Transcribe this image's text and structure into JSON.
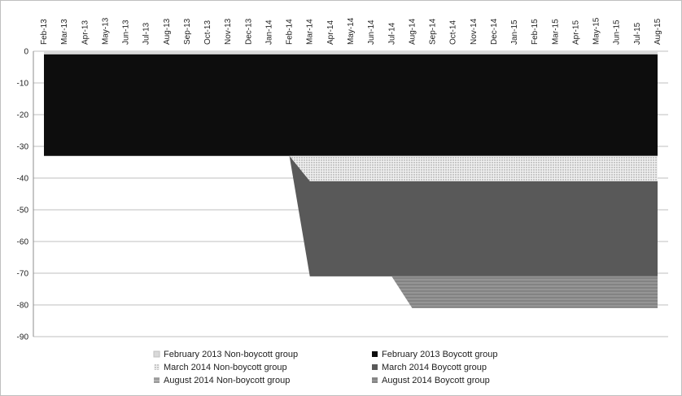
{
  "chart_data": {
    "type": "area",
    "title": "",
    "xlabel": "",
    "ylabel": "",
    "ylim": [
      -90,
      0
    ],
    "y_ticks": [
      0,
      -10,
      -20,
      -30,
      -40,
      -50,
      -60,
      -70,
      -80,
      -90
    ],
    "x_axis_position": "top",
    "grid": "horizontal",
    "legend_position": "bottom",
    "categories": [
      "Feb-13",
      "Mar-13",
      "Apr-13",
      "May-13",
      "Jun-13",
      "Jul-13",
      "Aug-13",
      "Sep-13",
      "Oct-13",
      "Nov-13",
      "Dec-13",
      "Jan-14",
      "Feb-14",
      "Mar-14",
      "Apr-14",
      "May-14",
      "Jun-14",
      "Jul-14",
      "Aug-14",
      "Sep-14",
      "Oct-14",
      "Nov-14",
      "Dec-14",
      "Jan-15",
      "Feb-15",
      "Mar-15",
      "Apr-15",
      "May-15",
      "Jun-15",
      "Jul-15",
      "Aug-15"
    ],
    "series": [
      {
        "name": "February 2013 Non-boycott group",
        "color": "#d9d9d9",
        "pattern": "solid",
        "values": [
          -1,
          -1,
          -1,
          -1,
          -1,
          -1,
          -1,
          -1,
          -1,
          -1,
          -1,
          -1,
          -1,
          -1,
          -1,
          -1,
          -1,
          -1,
          -1,
          -1,
          -1,
          -1,
          -1,
          -1,
          -1,
          -1,
          -1,
          -1,
          -1,
          -1,
          -1
        ]
      },
      {
        "name": "February 2013 Boycott group",
        "color": "#0d0d0d",
        "pattern": "solid",
        "values": [
          -32,
          -32,
          -32,
          -32,
          -32,
          -32,
          -32,
          -32,
          -32,
          -32,
          -32,
          -32,
          -32,
          -32,
          -32,
          -32,
          -32,
          -32,
          -32,
          -32,
          -32,
          -32,
          -32,
          -32,
          -32,
          -32,
          -32,
          -32,
          -32,
          -32,
          -32
        ]
      },
      {
        "name": "March 2014 Non-boycott group",
        "color": "#e6e6e6",
        "pattern": "dotted",
        "values": [
          0,
          0,
          0,
          0,
          0,
          0,
          0,
          0,
          0,
          0,
          0,
          0,
          0,
          -8,
          -8,
          -8,
          -8,
          -8,
          -8,
          -8,
          -8,
          -8,
          -8,
          -8,
          -8,
          -8,
          -8,
          -8,
          -8,
          -8,
          -8
        ]
      },
      {
        "name": "March 2014 Boycott group",
        "color": "#595959",
        "pattern": "solid",
        "values": [
          0,
          0,
          0,
          0,
          0,
          0,
          0,
          0,
          0,
          0,
          0,
          0,
          0,
          -30,
          -30,
          -30,
          -30,
          -30,
          -30,
          -30,
          -30,
          -30,
          -30,
          -30,
          -30,
          -30,
          -30,
          -30,
          -30,
          -30,
          -30
        ]
      },
      {
        "name": "August 2014 Non-boycott group",
        "color": "#bfbfbf",
        "pattern": "hatched",
        "values": [
          0,
          0,
          0,
          0,
          0,
          0,
          0,
          0,
          0,
          0,
          0,
          0,
          0,
          0,
          0,
          0,
          0,
          0,
          0,
          0,
          0,
          0,
          0,
          0,
          0,
          0,
          0,
          0,
          0,
          0,
          0
        ]
      },
      {
        "name": "August 2014 Boycott group",
        "color": "#8c8c8c",
        "pattern": "hatched",
        "values": [
          0,
          0,
          0,
          0,
          0,
          0,
          0,
          0,
          0,
          0,
          0,
          0,
          0,
          0,
          0,
          0,
          0,
          0,
          -10,
          -10,
          -10,
          -10,
          -10,
          -10,
          -10,
          -10,
          -10,
          -10,
          -10,
          -10,
          -10
        ]
      }
    ]
  }
}
